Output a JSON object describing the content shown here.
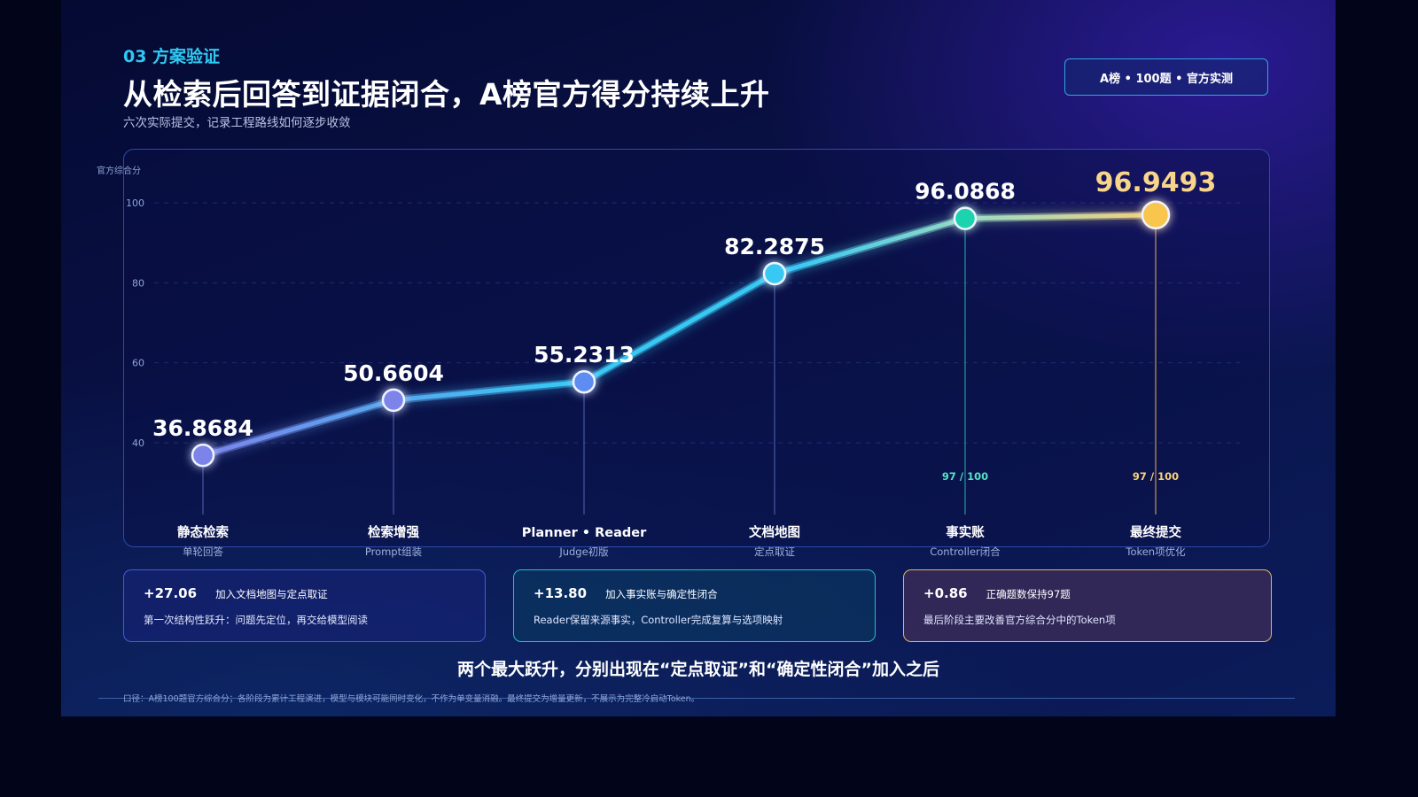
{
  "header": {
    "section_label": "03 方案验证",
    "title": "从检索后回答到证据闭合，A榜官方得分持续上升",
    "subtitle": "六次实际提交，记录工程路线如何逐步收敛",
    "badge": "A榜 • 100题 • 官方实测"
  },
  "chart_data": {
    "type": "line",
    "ylabel": "官方综合分",
    "ylim": [
      20,
      106
    ],
    "yticks": [
      40,
      60,
      80,
      100
    ],
    "grid": true,
    "categories": [
      "静态检索",
      "检索增强",
      "Planner • Reader",
      "文档地图",
      "事实账",
      "最终提交"
    ],
    "sublabels": [
      "单轮回答",
      "Prompt组装",
      "Judge初版",
      "定点取证",
      "Controller闭合",
      "Token项优化"
    ],
    "series": [
      {
        "values": [
          36.8684,
          50.6604,
          55.2313,
          82.2875,
          96.0868,
          96.9493
        ],
        "value_labels": [
          "36.8684",
          "50.6604",
          "55.2313",
          "82.2875",
          "96.0868",
          "96.9493"
        ]
      }
    ],
    "annotations": [
      {
        "index": 4,
        "text": "97 / 100"
      },
      {
        "index": 5,
        "text": "97 / 100"
      }
    ],
    "colors": {
      "line_start": "#7b84ea",
      "line_mid": "#38c8f4",
      "line_end": "#f6cf7a",
      "teal": "#1fd3b0",
      "gold": "#f8c54e",
      "highlight_text": "#f9d58a",
      "annotation_teal": "#52e3c6",
      "annotation_gold": "#f9d27a"
    }
  },
  "cards": [
    {
      "delta": "+27.06",
      "title": "加入文档地图与定点取证",
      "desc": "第一次结构性跃升：问题先定位，再交给模型阅读"
    },
    {
      "delta": "+13.80",
      "title": "加入事实账与确定性闭合",
      "desc": "Reader保留来源事实，Controller完成复算与选项映射"
    },
    {
      "delta": "+0.86",
      "title": "正确题数保持97题",
      "desc": "最后阶段主要改善官方综合分中的Token项"
    }
  ],
  "conclusion": "两个最大跃升，分别出现在“定点取证”和“确定性闭合”加入之后",
  "footnote": "口径：A榜100题官方综合分；各阶段为累计工程演进，模型与模块可能同时变化，不作为单变量消融。最终提交为增量更新，不展示为完整冷启动Token。"
}
